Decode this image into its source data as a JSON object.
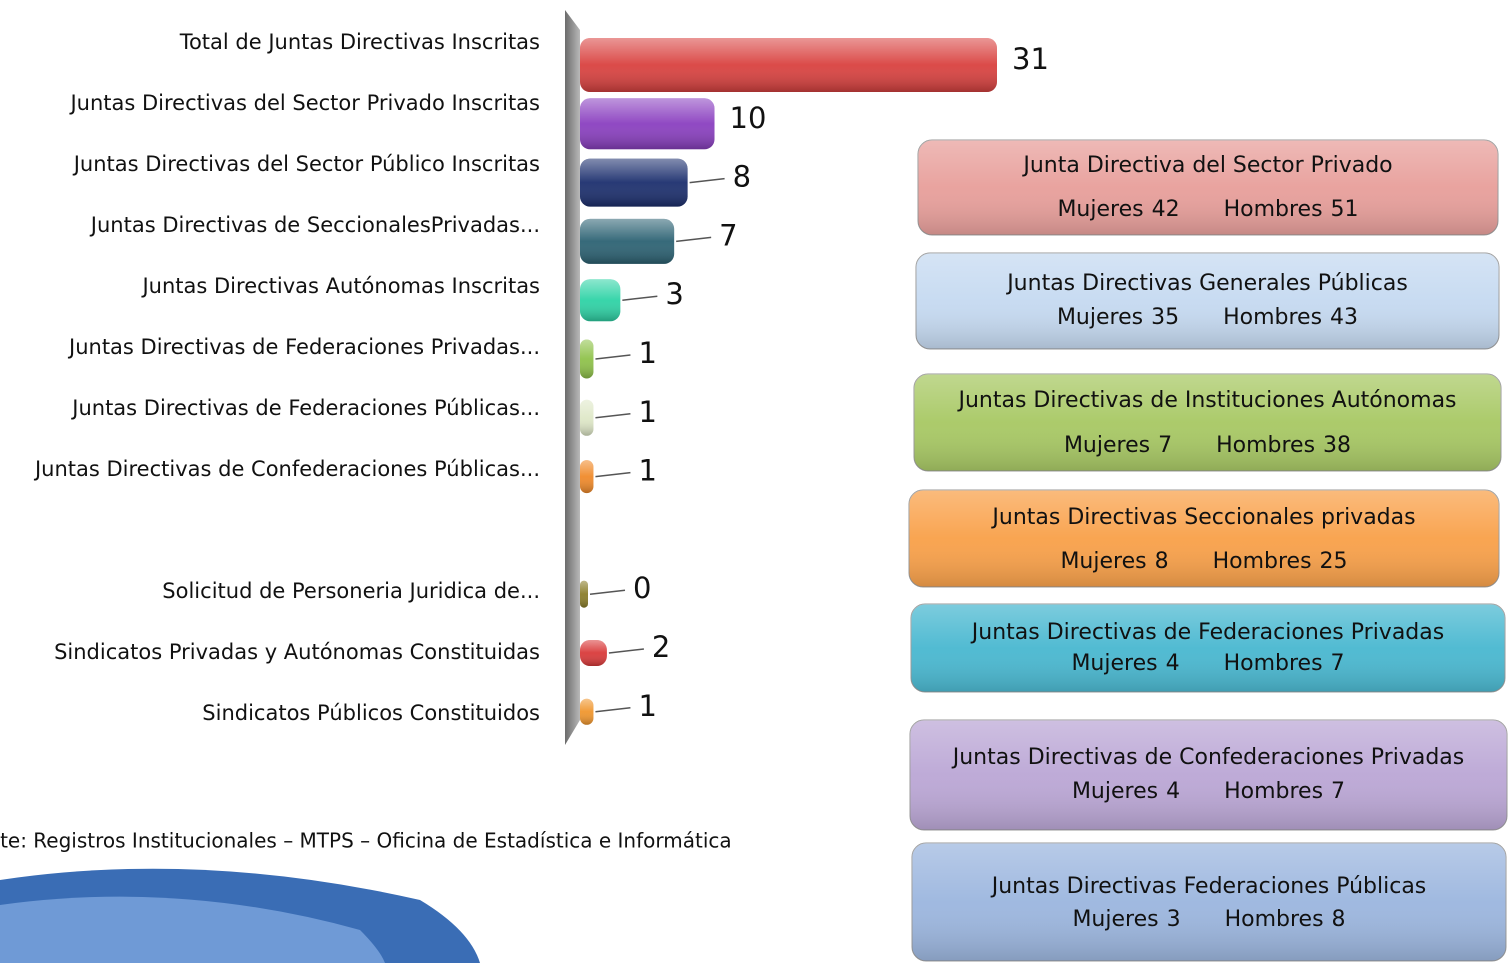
{
  "chart_data": {
    "type": "bar",
    "orientation": "horizontal",
    "categories": [
      "Total de Juntas Directivas Inscritas",
      "Juntas Directivas del Sector Privado Inscritas",
      "Juntas Directivas del Sector Público Inscritas",
      "Juntas Directivas de SeccionalesPrivadas...",
      "Juntas Directivas Autónomas Inscritas",
      "Juntas Directivas de Federaciones Privadas...",
      "Juntas Directivas de Federaciones Públicas...",
      "Juntas Directivas de Confederaciones Públicas...",
      null,
      "Solicitud de Personeria Juridica de...",
      "Sindicatos Privadas y Autónomas Constituidas",
      "Sindicatos Públicos Constituidos"
    ],
    "values": [
      31,
      10,
      8,
      7,
      3,
      1,
      1,
      1,
      null,
      0,
      2,
      1
    ],
    "colors": [
      "#d9413f",
      "#8a3fc0",
      "#1c2f6e",
      "#2c6273",
      "#2ed3a6",
      "#8fc24a",
      "#dfe8c8",
      "#f08a2a",
      null,
      "#8a7d2a",
      "#d93a3a",
      "#f0962e"
    ],
    "source": "Fuente: Registros Institucionales – MTPS – Oficina de Estadística e Informática",
    "boxes": [
      {
        "title": "Junta Directiva del Sector Privado",
        "women_label": "Mujeres",
        "women": 42,
        "men_label": "Hombres",
        "men": 51,
        "color": "#e8a09c"
      },
      {
        "title": "Juntas Directivas Generales Públicas",
        "women_label": "Mujeres",
        "women": 35,
        "men_label": "Hombres",
        "men": 43,
        "color": "#c6daf1"
      },
      {
        "title": "Juntas Directivas de Instituciones Autónomas",
        "women_label": "Mujeres",
        "women": 7,
        "men_label": "Hombres",
        "men": 38,
        "color": "#a9c966"
      },
      {
        "title": "Juntas Directivas Seccionales privadas",
        "women_label": "Mujeres",
        "women": 8,
        "men_label": "Hombres",
        "men": 25,
        "color": "#f9a24c"
      },
      {
        "title": "Juntas Directivas de Federaciones  Privadas",
        "women_label": "Mujeres",
        "women": 4,
        "men_label": "Hombres",
        "men": 7,
        "color": "#4cb9d1"
      },
      {
        "title": "Juntas Directivas de Confederaciones Privadas",
        "women_label": "Mujeres",
        "women": 4,
        "men_label": "Hombres",
        "men": 7,
        "color": "#bca8d6"
      },
      {
        "title": "Juntas Directivas  Federaciones Públicas",
        "women_label": "Mujeres",
        "women": 3,
        "men_label": "Hombres",
        "men": 8,
        "color": "#9db7df"
      }
    ]
  }
}
